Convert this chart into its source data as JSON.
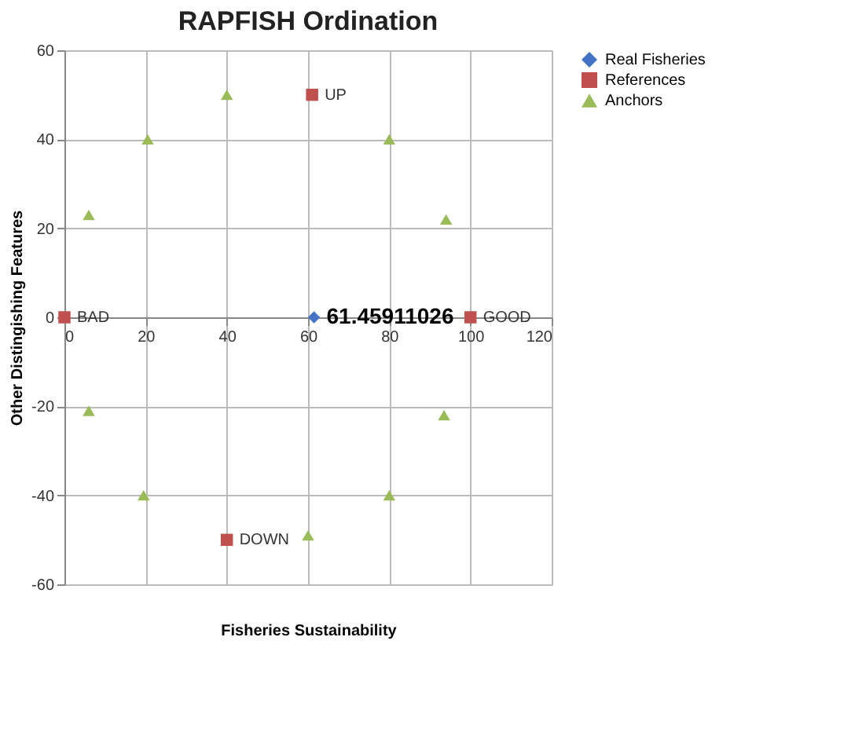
{
  "chart_data": {
    "type": "scatter",
    "title": "RAPFISH Ordination",
    "xlabel": "Fisheries Sustainability",
    "ylabel": "Other Distingishing Features",
    "xlim": [
      0,
      120
    ],
    "xticks": [
      0,
      20,
      40,
      60,
      80,
      100,
      120
    ],
    "ylim": [
      -60,
      60
    ],
    "yticks": [
      -60,
      -40,
      -20,
      0,
      20,
      40,
      60
    ],
    "grid": true,
    "legend": "right",
    "series": [
      {
        "name": "Real Fisheries",
        "color": "#4472c4",
        "marker": "diamond",
        "x": [
          61.45911026
        ],
        "values": [
          0
        ]
      },
      {
        "name": "References",
        "color": "#c0504d",
        "marker": "square",
        "x": [
          0,
          100,
          61,
          40
        ],
        "values": [
          0,
          0,
          50,
          -50
        ]
      },
      {
        "name": "Anchors",
        "color": "#9bbb59",
        "marker": "triangle",
        "x": [
          6,
          20.5,
          40,
          80,
          94,
          6,
          19.5,
          60,
          80,
          93.5
        ],
        "values": [
          23,
          40,
          50,
          40,
          22,
          -21,
          -40,
          -49,
          -40,
          -22
        ]
      }
    ],
    "annotations": [
      {
        "text": "61.45911026",
        "x": 61.45911026,
        "y": 0
      },
      {
        "text": "BAD",
        "x": 0,
        "y": 0
      },
      {
        "text": "GOOD",
        "x": 100,
        "y": 0
      },
      {
        "text": "UP",
        "x": 61,
        "y": 50
      },
      {
        "text": "DOWN",
        "x": 40,
        "y": -50
      }
    ]
  }
}
